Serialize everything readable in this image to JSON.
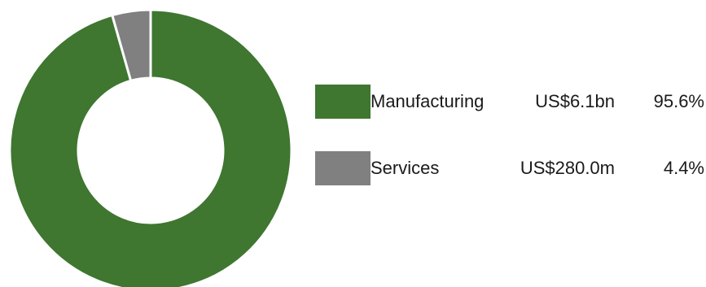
{
  "chart_data": {
    "type": "pie",
    "style": "donut",
    "start_angle_deg": 0,
    "direction": "clockwise",
    "legend_position": "right",
    "slices": [
      {
        "label": "Manufacturing",
        "amount": "US$6.1bn",
        "percent_label": "95.6%",
        "value": 95.6,
        "color": "#3f7630"
      },
      {
        "label": "Services",
        "amount": "US$280.0m",
        "percent_label": "4.4%",
        "value": 4.4,
        "color": "#808080"
      }
    ],
    "slice_border_color": "#ffffff"
  }
}
